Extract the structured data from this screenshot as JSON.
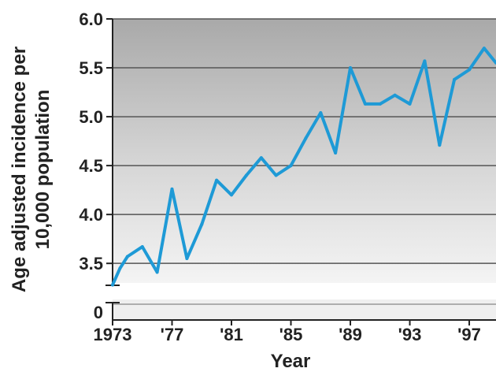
{
  "chart_data": {
    "type": "line",
    "title": "",
    "xlabel": "Year",
    "ylabel_line1": "Age adjusted incidence per",
    "ylabel_line2": "10,000 population",
    "ylim": [
      3.3,
      6.0
    ],
    "axis_break": true,
    "y_ticks": [
      "6.0",
      "5.5",
      "5.0",
      "4.5",
      "4.0",
      "3.5"
    ],
    "y_zero_label": "0",
    "x_ticks": [
      {
        "year": 1973,
        "label": "1973"
      },
      {
        "year": 1977,
        "label": "'77"
      },
      {
        "year": 1981,
        "label": "'81"
      },
      {
        "year": 1985,
        "label": "'85"
      },
      {
        "year": 1989,
        "label": "'89"
      },
      {
        "year": 1993,
        "label": "'93"
      },
      {
        "year": 1997,
        "label": "'97"
      }
    ],
    "grid": true,
    "line_color": "#1e9ad6",
    "series": [
      {
        "x": [
          1973,
          1973.5,
          1974,
          1975,
          1976,
          1977,
          1978,
          1979,
          1980,
          1981,
          1982,
          1983,
          1984,
          1985,
          1986,
          1987,
          1988,
          1989,
          1990,
          1991,
          1992,
          1993,
          1994,
          1995,
          1996,
          1997,
          1998,
          1998.8
        ],
        "y": [
          3.28,
          3.45,
          3.57,
          3.67,
          3.41,
          4.26,
          3.55,
          3.9,
          4.35,
          4.2,
          4.4,
          4.58,
          4.4,
          4.5,
          4.78,
          5.04,
          4.63,
          5.5,
          5.13,
          5.13,
          5.22,
          5.13,
          5.57,
          4.71,
          5.38,
          5.48,
          5.7,
          5.55
        ]
      }
    ]
  }
}
